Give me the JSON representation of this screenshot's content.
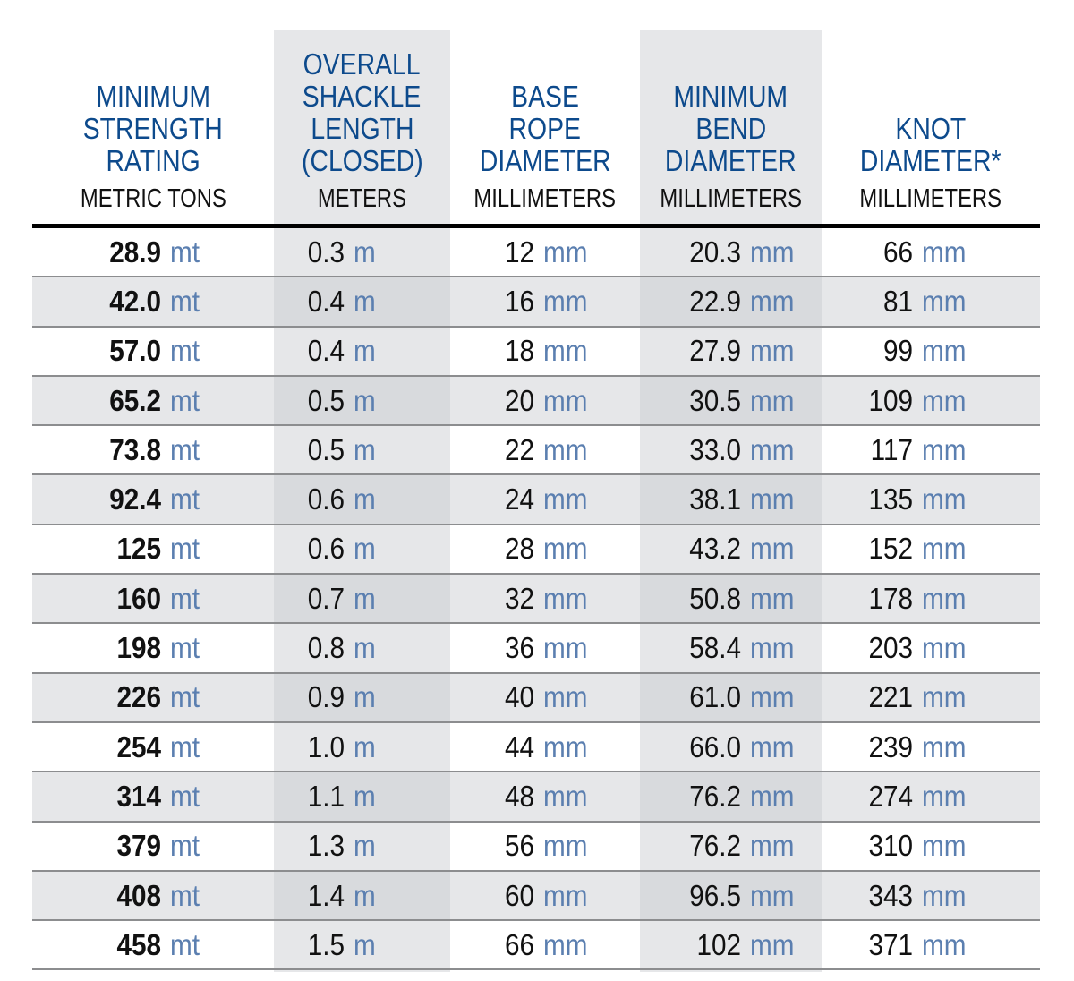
{
  "colors": {
    "header_title": "#0d4a8c",
    "unit": "#5b7fb0",
    "shade": "#e6e7e9",
    "rule": "#000000"
  },
  "columns": [
    {
      "title": [
        "MINIMUM",
        "STRENGTH",
        "RATING"
      ],
      "unit_label": "METRIC TONS",
      "unit": "mt"
    },
    {
      "title": [
        "OVERALL",
        "SHACKLE",
        "LENGTH",
        "(CLOSED)"
      ],
      "unit_label": "METERS",
      "unit": "m"
    },
    {
      "title": [
        "BASE",
        "ROPE",
        "DIAMETER"
      ],
      "unit_label": "MILLIMETERS",
      "unit": "mm"
    },
    {
      "title": [
        "MINIMUM",
        "BEND",
        "DIAMETER"
      ],
      "unit_label": "MILLIMETERS",
      "unit": "mm"
    },
    {
      "title": [
        "KNOT",
        "DIAMETER*"
      ],
      "unit_label": "MILLIMETERS",
      "unit": "mm"
    }
  ],
  "rows": [
    [
      "28.9",
      "0.3",
      "12",
      "20.3",
      "66"
    ],
    [
      "42.0",
      "0.4",
      "16",
      "22.9",
      "81"
    ],
    [
      "57.0",
      "0.4",
      "18",
      "27.9",
      "99"
    ],
    [
      "65.2",
      "0.5",
      "20",
      "30.5",
      "109"
    ],
    [
      "73.8",
      "0.5",
      "22",
      "33.0",
      "117"
    ],
    [
      "92.4",
      "0.6",
      "24",
      "38.1",
      "135"
    ],
    [
      "125",
      "0.6",
      "28",
      "43.2",
      "152"
    ],
    [
      "160",
      "0.7",
      "32",
      "50.8",
      "178"
    ],
    [
      "198",
      "0.8",
      "36",
      "58.4",
      "203"
    ],
    [
      "226",
      "0.9",
      "40",
      "61.0",
      "221"
    ],
    [
      "254",
      "1.0",
      "44",
      "66.0",
      "239"
    ],
    [
      "314",
      "1.1",
      "48",
      "76.2",
      "274"
    ],
    [
      "379",
      "1.3",
      "56",
      "76.2",
      "310"
    ],
    [
      "408",
      "1.4",
      "60",
      "96.5",
      "343"
    ],
    [
      "458",
      "1.5",
      "66",
      "102",
      "371"
    ]
  ]
}
